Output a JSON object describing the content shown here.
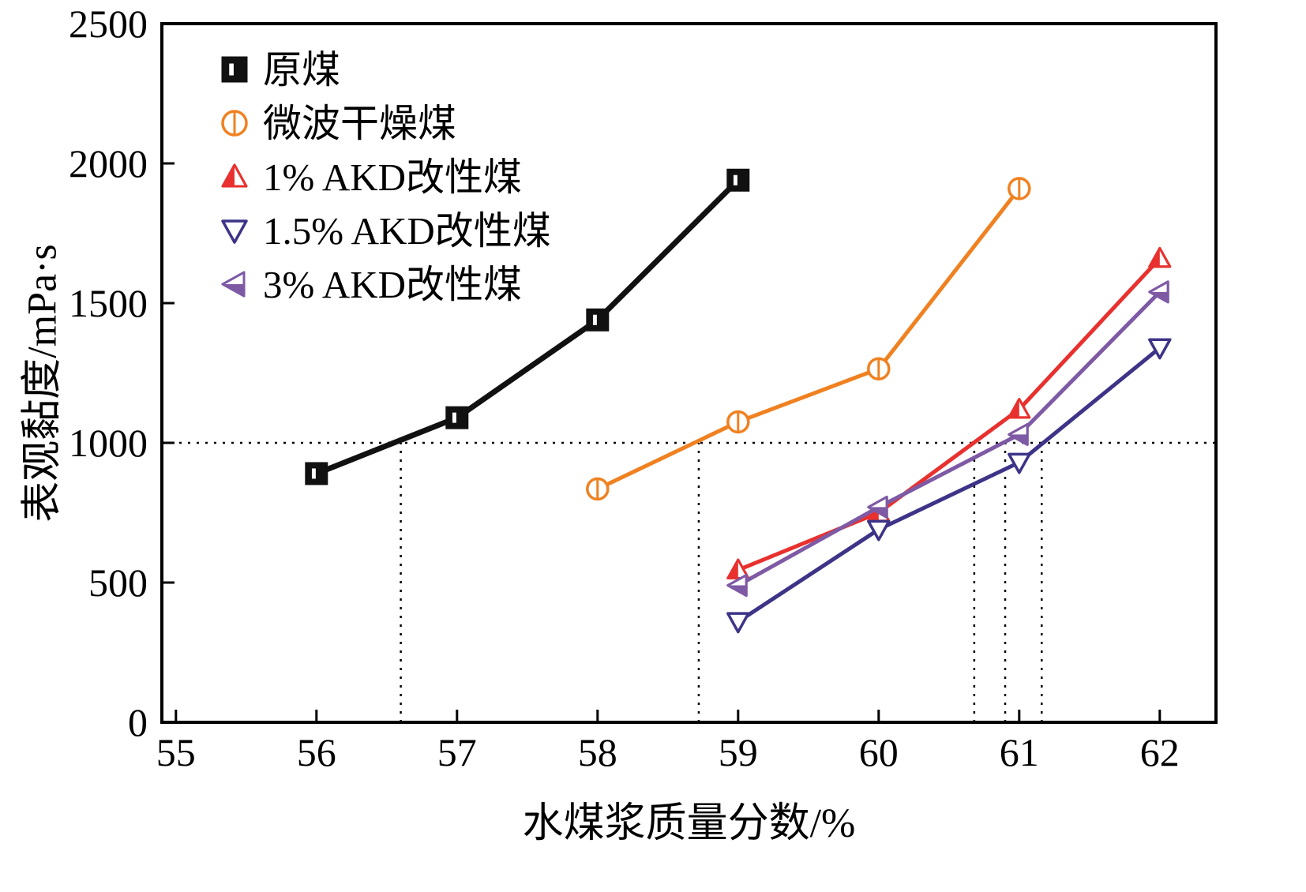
{
  "chart_data": {
    "type": "line",
    "title": "",
    "xlabel": "水煤浆质量分数/%",
    "ylabel": "表观黏度/mPa·s",
    "xlim": [
      54.9,
      62.4
    ],
    "ylim": [
      0,
      2500
    ],
    "xticks": [
      55,
      56,
      57,
      58,
      59,
      60,
      61,
      62
    ],
    "yticks": [
      0,
      500,
      1000,
      1500,
      2000,
      2500
    ],
    "grid": false,
    "legend_position": "top-left-inside",
    "series": [
      {
        "name": "原煤",
        "color": "#111111",
        "marker": "square",
        "marker_style": "notched",
        "line_width": 7,
        "x": [
          56,
          57,
          58,
          59
        ],
        "y": [
          890,
          1090,
          1440,
          1940
        ]
      },
      {
        "name": "微波干燥煤",
        "color": "#F08121",
        "marker": "circle",
        "marker_style": "vline",
        "line_width": 5,
        "x": [
          58,
          59,
          60,
          61
        ],
        "y": [
          835,
          1075,
          1265,
          1910
        ]
      },
      {
        "name": "1% AKD改性煤",
        "color": "#E8312E",
        "marker": "triangle-up",
        "marker_style": "half",
        "line_width": 5,
        "x": [
          59,
          60,
          61,
          62
        ],
        "y": [
          545,
          750,
          1120,
          1660
        ]
      },
      {
        "name": "1.5% AKD改性煤",
        "color": "#3D3488",
        "marker": "triangle-down",
        "marker_style": "open",
        "line_width": 5,
        "x": [
          59,
          60,
          61,
          62
        ],
        "y": [
          360,
          690,
          930,
          1340
        ]
      },
      {
        "name": "3% AKD改性煤",
        "color": "#7E5AA5",
        "marker": "triangle-left",
        "marker_style": "half",
        "line_width": 5,
        "x": [
          59,
          60,
          61,
          62
        ],
        "y": [
          490,
          770,
          1030,
          1540
        ]
      }
    ],
    "reference_lines": {
      "horizontal_y": 1000,
      "vertical_x": [
        56.6,
        58.72,
        60.68,
        60.9,
        61.16
      ],
      "style": "dotted",
      "color": "#000000"
    }
  }
}
